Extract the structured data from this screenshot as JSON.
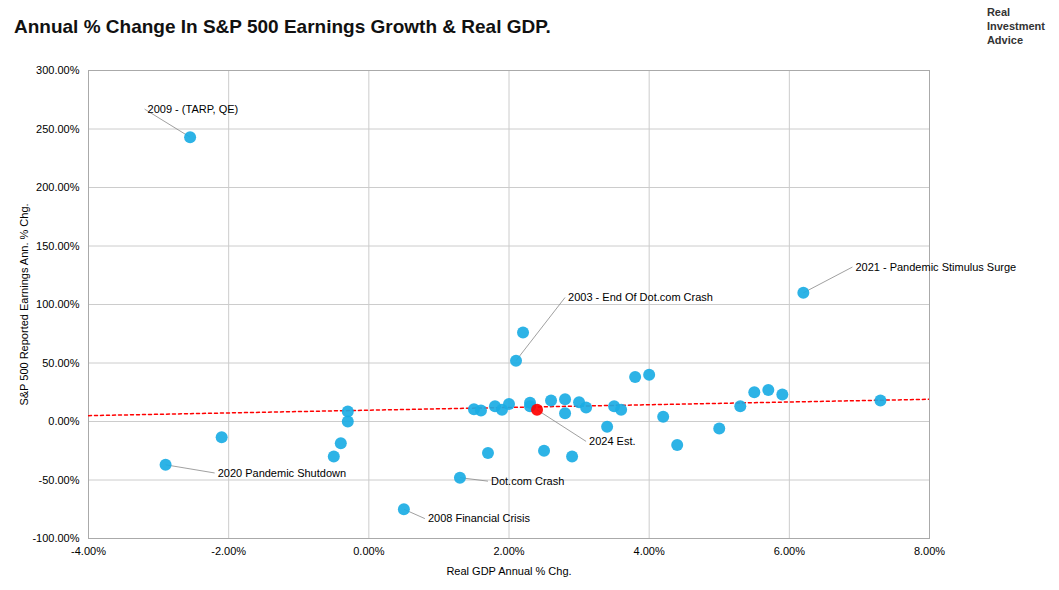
{
  "chart_data": {
    "type": "scatter",
    "title": "Annual % Change In S&P 500 Earnings Growth & Real GDP.",
    "xlabel": "Real GDP Annual % Chg.",
    "ylabel": "S&P 500 Reported Earnings Ann. % Chg.",
    "xlim": [
      -0.04,
      0.08
    ],
    "ylim": [
      -1.0,
      3.0
    ],
    "xticks": [
      {
        "value": -0.04,
        "label": "-4.00%"
      },
      {
        "value": -0.02,
        "label": "-2.00%"
      },
      {
        "value": 0.0,
        "label": "0.00%"
      },
      {
        "value": 0.02,
        "label": "2.00%"
      },
      {
        "value": 0.04,
        "label": "4.00%"
      },
      {
        "value": 0.06,
        "label": "6.00%"
      },
      {
        "value": 0.08,
        "label": "8.00%"
      }
    ],
    "yticks": [
      {
        "value": -1.0,
        "label": "-100.00%"
      },
      {
        "value": -0.5,
        "label": "-50.00%"
      },
      {
        "value": 0.0,
        "label": "0.00%"
      },
      {
        "value": 0.5,
        "label": "50.00%"
      },
      {
        "value": 1.0,
        "label": "100.00%"
      },
      {
        "value": 1.5,
        "label": "150.00%"
      },
      {
        "value": 2.0,
        "label": "200.00%"
      },
      {
        "value": 2.5,
        "label": "250.00%"
      },
      {
        "value": 3.0,
        "label": "300.00%"
      }
    ],
    "grid": true,
    "x": [
      -0.0255,
      -0.029,
      -0.021,
      -0.003,
      -0.003,
      -0.004,
      -0.005,
      0.005,
      0.013,
      0.015,
      0.016,
      0.017,
      0.018,
      0.019,
      0.02,
      0.021,
      0.022,
      0.023,
      0.023,
      0.024,
      0.025,
      0.026,
      0.028,
      0.028,
      0.029,
      0.03,
      0.031,
      0.034,
      0.035,
      0.036,
      0.038,
      0.04,
      0.042,
      0.044,
      0.05,
      0.053,
      0.055,
      0.057,
      0.059,
      0.062,
      0.073
    ],
    "values": [
      2.43,
      -0.37,
      -0.135,
      0.085,
      0.0,
      -0.185,
      -0.3,
      -0.75,
      -0.48,
      0.105,
      0.095,
      -0.27,
      0.13,
      0.1,
      0.15,
      0.52,
      0.76,
      0.16,
      0.13,
      0.1,
      -0.25,
      0.18,
      0.07,
      0.19,
      -0.3,
      0.165,
      0.12,
      -0.045,
      0.13,
      0.1,
      0.38,
      0.4,
      0.04,
      -0.2,
      -0.06,
      0.13,
      0.25,
      0.27,
      0.23,
      1.1,
      0.18
    ],
    "colors": [
      "#1BACE4",
      "#1BACE4",
      "#1BACE4",
      "#1BACE4",
      "#1BACE4",
      "#1BACE4",
      "#1BACE4",
      "#1BACE4",
      "#1BACE4",
      "#1BACE4",
      "#1BACE4",
      "#1BACE4",
      "#1BACE4",
      "#1BACE4",
      "#1BACE4",
      "#1BACE4",
      "#1BACE4",
      "#1BACE4",
      "#1BACE4",
      "#FF0000",
      "#1BACE4",
      "#1BACE4",
      "#1BACE4",
      "#1BACE4",
      "#1BACE4",
      "#1BACE4",
      "#1BACE4",
      "#1BACE4",
      "#1BACE4",
      "#1BACE4",
      "#1BACE4",
      "#1BACE4",
      "#1BACE4",
      "#1BACE4",
      "#1BACE4",
      "#1BACE4",
      "#1BACE4",
      "#1BACE4",
      "#1BACE4",
      "#1BACE4",
      "#1BACE4"
    ],
    "trend": {
      "x": [
        -0.04,
        0.08
      ],
      "values": [
        0.05,
        0.19
      ],
      "color": "#FF0000",
      "line_style": "dotted"
    },
    "annotations": [
      {
        "label": "2009 - (TARP, QE)",
        "x": -0.0255,
        "y": 2.43,
        "text_x": -0.032,
        "text_y": 2.67
      },
      {
        "label": "2020 Pandemic Shutdown",
        "x": -0.029,
        "y": -0.37,
        "text_x": -0.022,
        "text_y": -0.44
      },
      {
        "label": "2008 Financial Crisis",
        "x": 0.005,
        "y": -0.75,
        "text_x": 0.008,
        "text_y": -0.83
      },
      {
        "label": "Dot.com Crash",
        "x": 0.013,
        "y": -0.48,
        "text_x": 0.017,
        "text_y": -0.51
      },
      {
        "label": "2003 - End Of Dot.com Crash",
        "x": 0.021,
        "y": 0.52,
        "text_x": 0.028,
        "text_y": 1.06
      },
      {
        "label": "2024 Est.",
        "x": 0.024,
        "y": 0.1,
        "text_x": 0.031,
        "text_y": -0.17
      },
      {
        "label": "2021 - Pandemic Stimulus Surge",
        "x": 0.062,
        "y": 1.1,
        "text_x": 0.069,
        "text_y": 1.32
      }
    ],
    "logo_text": "Real\nInvestment\nAdvice"
  }
}
